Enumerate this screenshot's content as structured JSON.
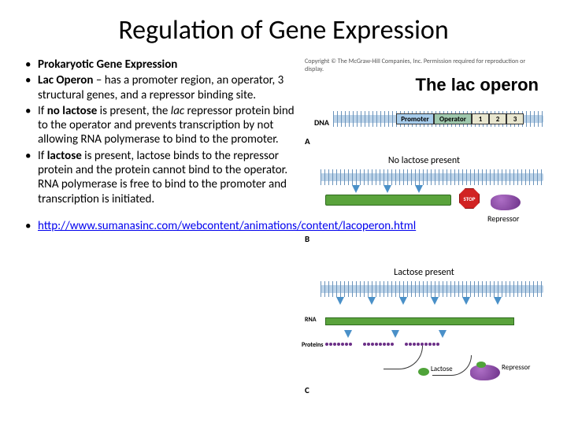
{
  "slide": {
    "title": "Regulation of Gene Expression",
    "bullets": {
      "b1_bold": "Prokaryotic Gene Expression",
      "b2_bold": "Lac Operon",
      "b2_rest": " – has a promoter region, an operator, 3 structural genes, and a repressor binding site.",
      "b3_pre": " If ",
      "b3_bold": "no lactose",
      "b3_mid": " is present, the ",
      "b3_italic": "lac",
      "b3_rest": " repressor protein bind to the operator and prevents transcription by not allowing RNA polymerase to bind to the promoter.",
      "b4_pre": "If ",
      "b4_bold": "lactose",
      "b4_rest": " is present, lactose binds to the repressor protein and the protein cannot bind to the operator. RNA polymerase is free to bind to the promoter and transcription is initiated.",
      "link_text": "http://www.sumanasinc.com/webcontent/animations/content/lacoperon.html",
      "link_href": "http://www.sumanasinc.com/webcontent/animations/content/lacoperon.html"
    }
  },
  "diagram": {
    "copyright": "Copyright © The McGraw-Hill Companies, Inc. Permission required for reproduction or display.",
    "title": "The lac operon",
    "dna_label": "DNA",
    "panelA_label": "A",
    "panelB_label": "B",
    "panelC_label": "C",
    "promoter": "Promoter",
    "operator": "Operator",
    "gene1": "1",
    "gene2": "2",
    "gene3": "3",
    "panelB_title": "No lactose present",
    "stop_label": "STOP",
    "repressor_label": "Repressor",
    "panelC_title": "Lactose present",
    "rna_label": "RNA",
    "proteins_label": "Proteins",
    "lactose_label": "Lactose",
    "colors": {
      "helix": "#bcd3e8",
      "helix_line": "#6a93bb",
      "promoter": "#a7cceb",
      "operator": "#9fc8ad",
      "gene": "#e8e6cf",
      "mrna_bar": "#5aa33c",
      "stop": "#d12323",
      "repressor": "#6b2f87",
      "lactose": "#4fa339",
      "arrow": "#4a90c8"
    }
  }
}
